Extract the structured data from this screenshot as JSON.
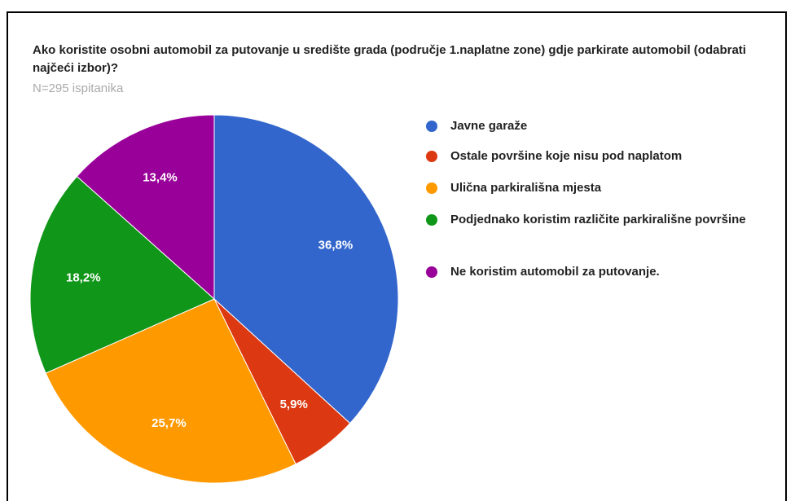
{
  "chart_data": {
    "type": "pie",
    "title": "Ako koristite osobni automobil za putovanje u središte grada (područje 1.naplatne zone) gdje parkirate automobil (odabrati najčeći izbor)?",
    "subtitle": "N=295 ispitanika",
    "categories": [
      "Javne garaže",
      "Ostale površine koje nisu pod naplatom",
      "Ulična parkirališna mjesta",
      "Podjednako koristim različite parkirališne površine",
      "Ne koristim automobil za putovanje."
    ],
    "values": [
      36.8,
      5.9,
      25.7,
      18.2,
      13.4
    ],
    "value_labels": [
      "36,8%",
      "5,9%",
      "25,7%",
      "18,2%",
      "13,4%"
    ],
    "colors": [
      "#3366cc",
      "#dc3912",
      "#ff9900",
      "#109618",
      "#990099"
    ],
    "legend": "right"
  }
}
